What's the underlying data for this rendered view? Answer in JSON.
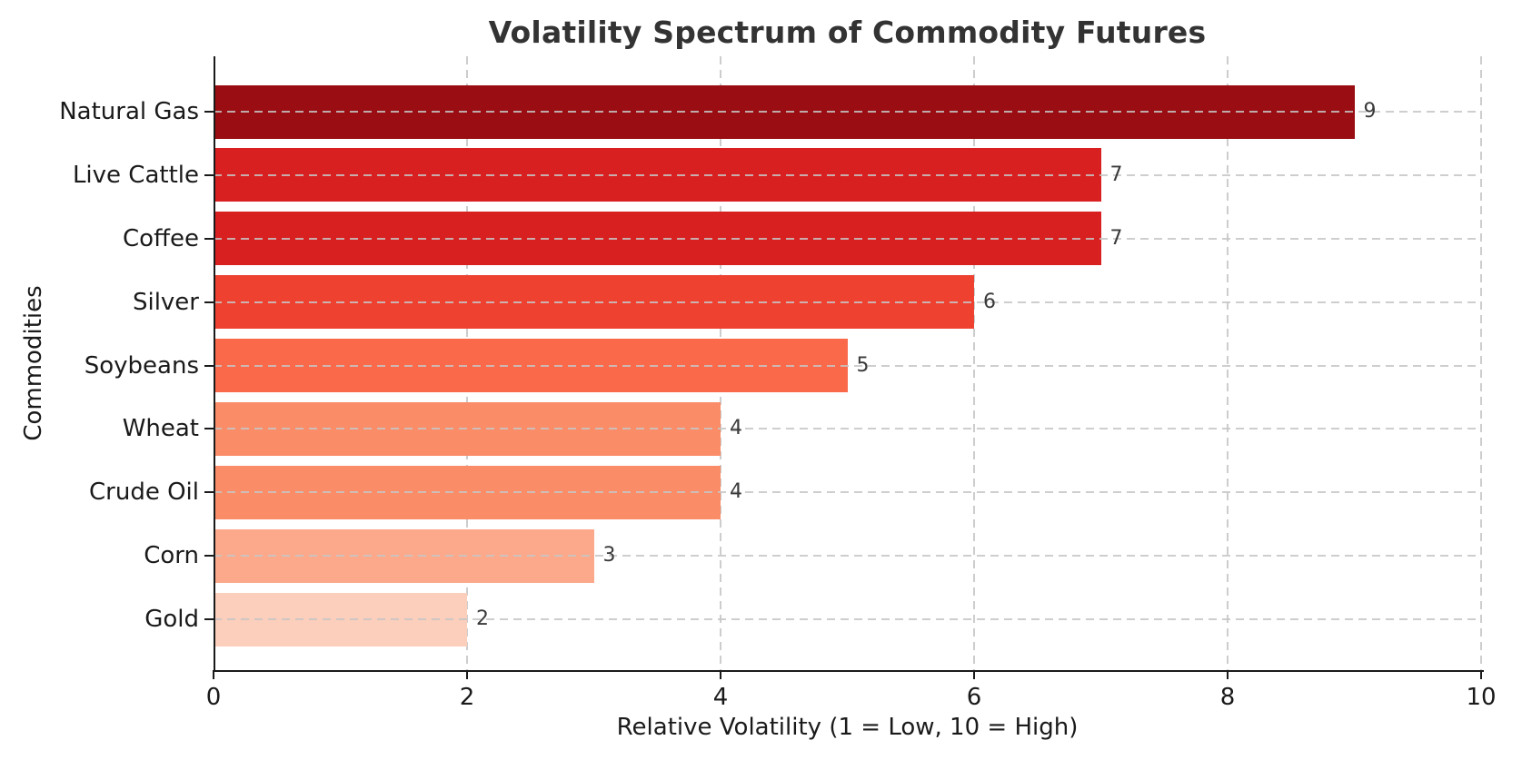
{
  "chart_data": {
    "type": "bar",
    "orientation": "horizontal",
    "title": "Volatility Spectrum of Commodity Futures",
    "xlabel": "Relative Volatility (1 = Low, 10 = High)",
    "ylabel": "Commodities",
    "categories": [
      "Natural Gas",
      "Live Cattle",
      "Coffee",
      "Silver",
      "Soybeans",
      "Wheat",
      "Crude Oil",
      "Corn",
      "Gold"
    ],
    "values": [
      9,
      7,
      7,
      6,
      5,
      4,
      4,
      3,
      2
    ],
    "bar_value_labels": [
      "9",
      "7",
      "7",
      "6",
      "5",
      "4",
      "4",
      "3",
      "2"
    ],
    "bar_colors": [
      "#9A0E13",
      "#D92021",
      "#D92021",
      "#EF4130",
      "#F9694A",
      "#FA8C68",
      "#FA8C68",
      "#FCA98B",
      "#FCCEBC"
    ],
    "xlim": [
      0,
      10
    ],
    "xticks": [
      0,
      2,
      4,
      6,
      8,
      10
    ],
    "grid": {
      "vertical": true,
      "horizontal": true,
      "style": "dashed"
    },
    "legend": "none",
    "sort_order": "descending"
  },
  "colors": {
    "background": "#ffffff",
    "title_text": "#333333",
    "axis_text": "#1a1a1a",
    "value_label_text": "#3a3a3a",
    "spine": "#1a1a1a",
    "gridline": "#cccccc"
  }
}
